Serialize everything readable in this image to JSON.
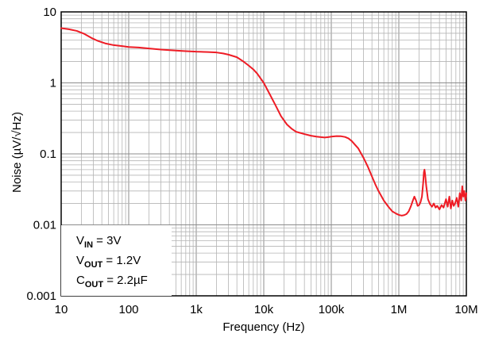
{
  "chart_data": {
    "type": "line",
    "title": "",
    "xlabel": "Frequency (Hz)",
    "ylabel": "Noise (µV/√Hz)",
    "x_scale": "log",
    "y_scale": "log",
    "xlim": [
      10,
      10000000
    ],
    "ylim": [
      0.001,
      10
    ],
    "grid": true,
    "x_ticks": [
      {
        "value": 10,
        "label": "10"
      },
      {
        "value": 100,
        "label": "100"
      },
      {
        "value": 1000,
        "label": "1k"
      },
      {
        "value": 10000,
        "label": "10k"
      },
      {
        "value": 100000,
        "label": "100k"
      },
      {
        "value": 1000000,
        "label": "1M"
      },
      {
        "value": 10000000,
        "label": "10M"
      }
    ],
    "y_ticks": [
      {
        "value": 10,
        "label": "10"
      },
      {
        "value": 1,
        "label": "1"
      },
      {
        "value": 0.1,
        "label": "0.1"
      },
      {
        "value": 0.01,
        "label": "0.01"
      },
      {
        "value": 0.001,
        "label": "0.001"
      }
    ],
    "series": [
      {
        "color": "#ee1c25",
        "points": [
          [
            10,
            5.9
          ],
          [
            13,
            5.7
          ],
          [
            17,
            5.4
          ],
          [
            22,
            4.9
          ],
          [
            28,
            4.3
          ],
          [
            35,
            3.9
          ],
          [
            45,
            3.6
          ],
          [
            60,
            3.4
          ],
          [
            80,
            3.3
          ],
          [
            100,
            3.2
          ],
          [
            140,
            3.15
          ],
          [
            200,
            3.05
          ],
          [
            300,
            2.95
          ],
          [
            500,
            2.85
          ],
          [
            700,
            2.8
          ],
          [
            1000,
            2.75
          ],
          [
            1500,
            2.72
          ],
          [
            2000,
            2.68
          ],
          [
            2500,
            2.6
          ],
          [
            3000,
            2.5
          ],
          [
            4000,
            2.3
          ],
          [
            5000,
            2.0
          ],
          [
            6000,
            1.75
          ],
          [
            7000,
            1.55
          ],
          [
            8000,
            1.35
          ],
          [
            10000,
            1.0
          ],
          [
            12000,
            0.72
          ],
          [
            15000,
            0.48
          ],
          [
            18000,
            0.34
          ],
          [
            22000,
            0.26
          ],
          [
            26000,
            0.225
          ],
          [
            30000,
            0.205
          ],
          [
            40000,
            0.19
          ],
          [
            50000,
            0.18
          ],
          [
            60000,
            0.175
          ],
          [
            70000,
            0.172
          ],
          [
            80000,
            0.17
          ],
          [
            90000,
            0.172
          ],
          [
            100000,
            0.175
          ],
          [
            120000,
            0.178
          ],
          [
            140000,
            0.177
          ],
          [
            160000,
            0.173
          ],
          [
            180000,
            0.165
          ],
          [
            200000,
            0.152
          ],
          [
            250000,
            0.12
          ],
          [
            300000,
            0.088
          ],
          [
            350000,
            0.065
          ],
          [
            400000,
            0.048
          ],
          [
            450000,
            0.037
          ],
          [
            500000,
            0.03
          ],
          [
            600000,
            0.022
          ],
          [
            700000,
            0.018
          ],
          [
            800000,
            0.0155
          ],
          [
            900000,
            0.0145
          ],
          [
            1000000,
            0.0138
          ],
          [
            1100000,
            0.0135
          ],
          [
            1200000,
            0.0137
          ],
          [
            1300000,
            0.0142
          ],
          [
            1400000,
            0.0155
          ],
          [
            1500000,
            0.018
          ],
          [
            1600000,
            0.0215
          ],
          [
            1700000,
            0.025
          ],
          [
            1800000,
            0.022
          ],
          [
            1900000,
            0.0185
          ],
          [
            2000000,
            0.019
          ],
          [
            2100000,
            0.021
          ],
          [
            2200000,
            0.025
          ],
          [
            2300000,
            0.04
          ],
          [
            2350000,
            0.055
          ],
          [
            2400000,
            0.06
          ],
          [
            2450000,
            0.052
          ],
          [
            2550000,
            0.035
          ],
          [
            2700000,
            0.023
          ],
          [
            2900000,
            0.0195
          ],
          [
            3100000,
            0.018
          ],
          [
            3300000,
            0.02
          ],
          [
            3500000,
            0.0175
          ],
          [
            3700000,
            0.0185
          ],
          [
            4000000,
            0.0165
          ],
          [
            4300000,
            0.019
          ],
          [
            4600000,
            0.0175
          ],
          [
            5000000,
            0.023
          ],
          [
            5300000,
            0.018
          ],
          [
            5600000,
            0.025
          ],
          [
            5900000,
            0.017
          ],
          [
            6200000,
            0.022
          ],
          [
            6500000,
            0.0185
          ],
          [
            6800000,
            0.02
          ],
          [
            7200000,
            0.024
          ],
          [
            7600000,
            0.018
          ],
          [
            8000000,
            0.028
          ],
          [
            8400000,
            0.022
          ],
          [
            8700000,
            0.035
          ],
          [
            9000000,
            0.025
          ],
          [
            9300000,
            0.03
          ],
          [
            9700000,
            0.022
          ],
          [
            10000000,
            0.028
          ]
        ]
      }
    ],
    "legend_box": {
      "lines": [
        {
          "main": "V",
          "sub": "IN",
          "rest": " = 3V"
        },
        {
          "main": "V",
          "sub": "OUT",
          "rest": " = 1.2V"
        },
        {
          "main": "C",
          "sub": "OUT",
          "rest": " = 2.2µF"
        }
      ],
      "placement": "bottom-left"
    }
  }
}
